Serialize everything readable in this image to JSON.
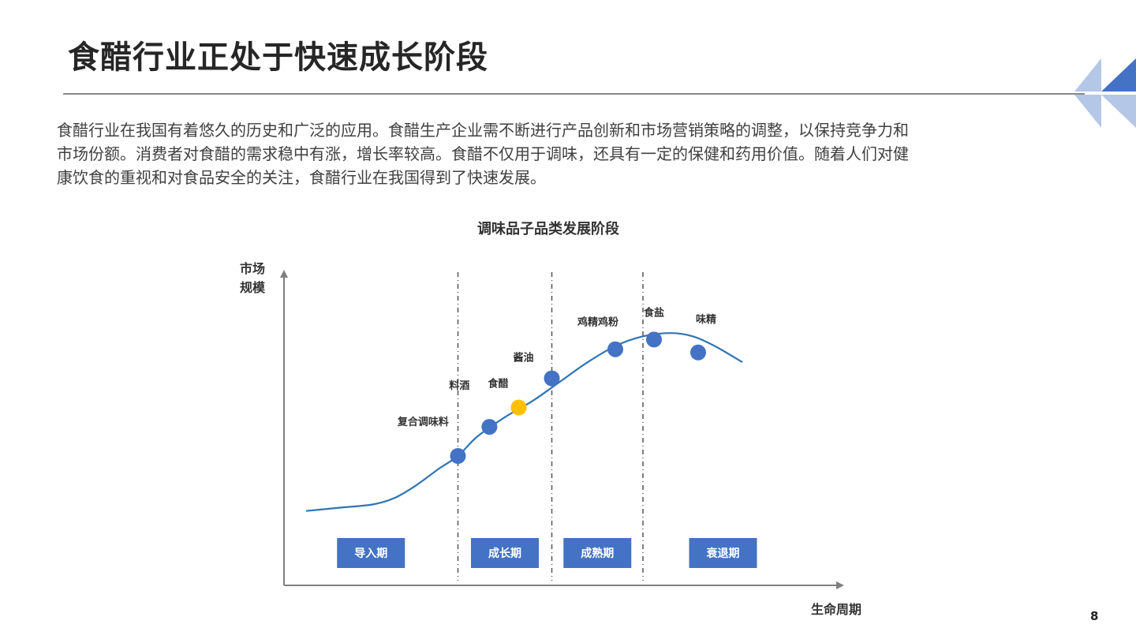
{
  "title": "食醋行业正处于快速成长阶段",
  "paragraph_lines": [
    "食醋行业在我国有着悠久的历史和广泛的应用。食醋生产企业需不断进行产品创新和市场营销策略的调整，以保持竞争力和",
    "市场份额。消费者对食醋的需求稳中有涨，增长率较高。食醋不仅用于调味，还具有一定的保健和药用价值。随着人们对健",
    "康饮食的重视和对食品安全的关注，食醋行业在我国得到了快速发展。"
  ],
  "page_number": "8",
  "colors": {
    "curve": "#2e75b6",
    "point": "#4472c4",
    "highlight": "#ffc000",
    "stage_box": "#4472c4",
    "axis": "#7f7f7f",
    "logo_dark": "#4472c4",
    "logo_light": "#b4c7e7"
  },
  "chart_data": {
    "type": "line",
    "title": "调味品子品类发展阶段",
    "ylabel_lines": [
      "市场",
      "规模"
    ],
    "xlabel": "生命周期",
    "x_range": [
      0,
      100
    ],
    "y_range": [
      0,
      100
    ],
    "curve": [
      {
        "x": 4,
        "y": 23
      },
      {
        "x": 10,
        "y": 24
      },
      {
        "x": 16,
        "y": 25
      },
      {
        "x": 20,
        "y": 27
      },
      {
        "x": 24,
        "y": 31
      },
      {
        "x": 28,
        "y": 36
      },
      {
        "x": 31.5,
        "y": 40
      },
      {
        "x": 35,
        "y": 46
      },
      {
        "x": 40,
        "y": 52
      },
      {
        "x": 45,
        "y": 57
      },
      {
        "x": 50,
        "y": 63
      },
      {
        "x": 55,
        "y": 69
      },
      {
        "x": 60,
        "y": 74
      },
      {
        "x": 65,
        "y": 77
      },
      {
        "x": 70,
        "y": 78
      },
      {
        "x": 74,
        "y": 77
      },
      {
        "x": 78,
        "y": 74
      },
      {
        "x": 83,
        "y": 69
      }
    ],
    "points": [
      {
        "label": "",
        "x": 31.5,
        "y": 40,
        "highlight": false
      },
      {
        "label": "复合调味料",
        "x": 37.2,
        "y": 49,
        "highlight": false
      },
      {
        "label": "料酒",
        "x": 37.2,
        "y": 49,
        "highlight": false,
        "hidden_point": true
      },
      {
        "label": "食醋",
        "x": 42.5,
        "y": 55,
        "highlight": true
      },
      {
        "label": "酱油",
        "x": 48.5,
        "y": 64,
        "highlight": false
      },
      {
        "label": "鸡精鸡粉",
        "x": 60,
        "y": 73,
        "highlight": false
      },
      {
        "label": "食盐",
        "x": 67,
        "y": 76,
        "highlight": false
      },
      {
        "label": "味精",
        "x": 75,
        "y": 72,
        "highlight": false
      }
    ],
    "stages": [
      "导入期",
      "成长期",
      "成熟期",
      "衰退期"
    ],
    "stage_boundaries_x": [
      31.5,
      48.5,
      65
    ]
  }
}
